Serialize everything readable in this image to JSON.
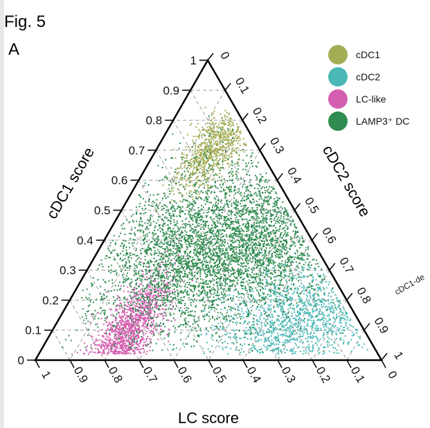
{
  "figure": {
    "fig_label": "Fig. 5",
    "panel_label": "A",
    "cut_off_label": "cDC1-de"
  },
  "chart_data": {
    "type": "scatter",
    "subtype": "ternary",
    "axes": {
      "left": {
        "title": "cDC1 score",
        "ticks": [
          "0",
          "0.1",
          "0.2",
          "0.3",
          "0.4",
          "0.5",
          "0.6",
          "0.7",
          "0.8",
          "0.9",
          "1"
        ]
      },
      "right": {
        "title": "cDC2 score",
        "ticks": [
          "0",
          "0.1",
          "0.2",
          "0.3",
          "0.4",
          "0.5",
          "0.6",
          "0.7",
          "0.8",
          "0.9",
          "1"
        ]
      },
      "bottom": {
        "title": "LC score",
        "ticks": [
          "1",
          "0.9",
          "0.8",
          "0.7",
          "0.6",
          "0.5",
          "0.4",
          "0.3",
          "0.2",
          "0.1",
          "0"
        ]
      }
    },
    "grid": true,
    "grid_style": "dashed",
    "legend_position": "top-right",
    "series": [
      {
        "name": "cDC1",
        "color": "#a3ad56",
        "cluster_center": {
          "cdc1": 0.7,
          "cdc2": 0.16,
          "lc": 0.14
        },
        "spread": [
          0.07,
          0.04
        ],
        "points": 900
      },
      {
        "name": "cDC2",
        "color": "#4ab8b6",
        "cluster_center": {
          "cdc1": 0.14,
          "cdc2": 0.7,
          "lc": 0.16
        },
        "spread": [
          0.1,
          0.12
        ],
        "points": 1800
      },
      {
        "name": "LC-like",
        "color": "#d45fb0",
        "cluster_center": {
          "cdc1": 0.08,
          "cdc2": 0.22,
          "lc": 0.7
        },
        "spread": [
          0.1,
          0.04
        ],
        "points": 1700
      },
      {
        "name": "LAMP3⁺ DC",
        "color": "#2f8b4f",
        "cluster_center": {
          "cdc1": 0.38,
          "cdc2": 0.36,
          "lc": 0.26
        },
        "spread": [
          0.14,
          0.17
        ],
        "points": 5200
      }
    ]
  }
}
